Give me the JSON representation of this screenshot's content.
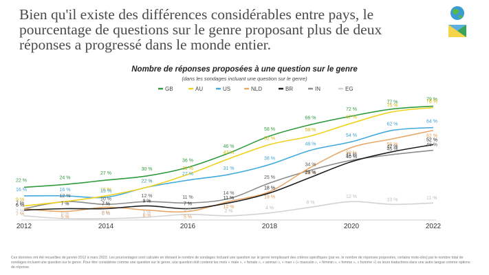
{
  "headline": "Bien qu'il existe des différences considérables entre pays, le pourcentage de questions sur le genre proposant plus de deux réponses a progressé dans le monde entier.",
  "chart_data": {
    "type": "line",
    "title": "Nombre de réponses proposées à une question sur le genre",
    "subtitle": "(dans les sondages incluant une question sur le genre)",
    "xlabel": "",
    "ylabel": "",
    "ylim": [
      0,
      85
    ],
    "x": [
      2012,
      2013,
      2014,
      2015,
      2016,
      2017,
      2018,
      2019,
      2020,
      2021,
      2022
    ],
    "x_tick_labels": [
      "2012",
      "2014",
      "2016",
      "2018",
      "2020",
      "2022"
    ],
    "grid": false,
    "legend_position": "top",
    "series": [
      {
        "name": "GB",
        "color": "#2e9a3c",
        "values": [
          22,
          24,
          27,
          30,
          36,
          46,
          58,
          66,
          72,
          77,
          79
        ]
      },
      {
        "name": "AU",
        "color": "#f0d21c",
        "values": [
          9,
          12,
          16,
          22,
          31,
          42,
          52,
          58,
          67,
          75,
          78
        ]
      },
      {
        "name": "US",
        "color": "#41a9dc",
        "values": [
          16,
          16,
          15,
          22,
          27,
          31,
          38,
          48,
          54,
          62,
          64
        ]
      },
      {
        "name": "NLD",
        "color": "#e8a868",
        "values": [
          7,
          5,
          8,
          6,
          5,
          12,
          19,
          36,
          50,
          56,
          62
        ]
      },
      {
        "name": "BR",
        "color": "#1e1e1e",
        "values": [
          6,
          7,
          7,
          9,
          7,
          11,
          18,
          29,
          40,
          47,
          52
        ]
      },
      {
        "name": "IN",
        "color": "#8c8c8c",
        "values": [
          7,
          12,
          10,
          12,
          11,
          14,
          25,
          34,
          41,
          45,
          48
        ]
      },
      {
        "name": "EG",
        "color": "#d2d2d2",
        "values": [
          2,
          0,
          0,
          1,
          3,
          2,
          4,
          8,
          12,
          10,
          11
        ]
      }
    ],
    "labels": [
      {
        "series": "GB",
        "x": 2012,
        "text": "22 %"
      },
      {
        "series": "GB",
        "x": 2013,
        "text": "24 %"
      },
      {
        "series": "GB",
        "x": 2014,
        "text": "27 %"
      },
      {
        "series": "GB",
        "x": 2015,
        "text": "30 %"
      },
      {
        "series": "GB",
        "x": 2016,
        "text": "36 %"
      },
      {
        "series": "GB",
        "x": 2017,
        "text": "46 %"
      },
      {
        "series": "GB",
        "x": 2018,
        "text": "58 %"
      },
      {
        "series": "GB",
        "x": 2019,
        "text": "66 %"
      },
      {
        "series": "GB",
        "x": 2020,
        "text": "72 %"
      },
      {
        "series": "GB",
        "x": 2021,
        "text": "77 %"
      },
      {
        "series": "GB",
        "x": 2022,
        "text": "79 %"
      },
      {
        "series": "AU",
        "x": 2012,
        "text": "9 %"
      },
      {
        "series": "AU",
        "x": 2014,
        "text": "16 %"
      },
      {
        "series": "AU",
        "x": 2015,
        "text": "22 %"
      },
      {
        "series": "AU",
        "x": 2016,
        "text": "31 %"
      },
      {
        "series": "AU",
        "x": 2017,
        "text": "42 %"
      },
      {
        "series": "AU",
        "x": 2018,
        "text": "52 %"
      },
      {
        "series": "AU",
        "x": 2019,
        "text": "58 %"
      },
      {
        "series": "AU",
        "x": 2020,
        "text": "67 %"
      },
      {
        "series": "AU",
        "x": 2021,
        "text": "75 %"
      },
      {
        "series": "AU",
        "x": 2022,
        "text": "78 %"
      },
      {
        "series": "US",
        "x": 2012,
        "text": "16 %"
      },
      {
        "series": "US",
        "x": 2013,
        "text": "16 %"
      },
      {
        "series": "US",
        "x": 2014,
        "text": "15 %"
      },
      {
        "series": "US",
        "x": 2015,
        "text": "22 %"
      },
      {
        "series": "US",
        "x": 2016,
        "text": "27 %"
      },
      {
        "series": "US",
        "x": 2017,
        "text": "31 %"
      },
      {
        "series": "US",
        "x": 2018,
        "text": "38 %"
      },
      {
        "series": "US",
        "x": 2019,
        "text": "48 %"
      },
      {
        "series": "US",
        "x": 2020,
        "text": "54 %"
      },
      {
        "series": "US",
        "x": 2021,
        "text": "62 %"
      },
      {
        "series": "US",
        "x": 2022,
        "text": "64 %"
      },
      {
        "series": "NLD",
        "x": 2012,
        "text": "7 %"
      },
      {
        "series": "NLD",
        "x": 2013,
        "text": "5 %"
      },
      {
        "series": "NLD",
        "x": 2014,
        "text": "8 %"
      },
      {
        "series": "NLD",
        "x": 2015,
        "text": "6 %"
      },
      {
        "series": "NLD",
        "x": 2016,
        "text": "5 %"
      },
      {
        "series": "NLD",
        "x": 2017,
        "text": "12 %"
      },
      {
        "series": "NLD",
        "x": 2018,
        "text": "19 %"
      },
      {
        "series": "NLD",
        "x": 2019,
        "text": "36 %"
      },
      {
        "series": "NLD",
        "x": 2020,
        "text": "50 %"
      },
      {
        "series": "NLD",
        "x": 2021,
        "text": "56 %"
      },
      {
        "series": "NLD",
        "x": 2022,
        "text": "62 %"
      },
      {
        "series": "BR",
        "x": 2012,
        "text": "6 %"
      },
      {
        "series": "BR",
        "x": 2013,
        "text": "7 %"
      },
      {
        "series": "BR",
        "x": 2014,
        "text": "7 %"
      },
      {
        "series": "BR",
        "x": 2015,
        "text": "9 %"
      },
      {
        "series": "BR",
        "x": 2016,
        "text": "7 %"
      },
      {
        "series": "BR",
        "x": 2017,
        "text": "11 %"
      },
      {
        "series": "BR",
        "x": 2018,
        "text": "18 %"
      },
      {
        "series": "BR",
        "x": 2019,
        "text": "29 %"
      },
      {
        "series": "BR",
        "x": 2020,
        "text": "40 %"
      },
      {
        "series": "BR",
        "x": 2021,
        "text": "47 %"
      },
      {
        "series": "BR",
        "x": 2022,
        "text": "52 %"
      },
      {
        "series": "IN",
        "x": 2012,
        "text": "7 %"
      },
      {
        "series": "IN",
        "x": 2013,
        "text": "12 %"
      },
      {
        "series": "IN",
        "x": 2014,
        "text": "10 %"
      },
      {
        "series": "IN",
        "x": 2015,
        "text": "12 %"
      },
      {
        "series": "IN",
        "x": 2016,
        "text": "11 %"
      },
      {
        "series": "IN",
        "x": 2017,
        "text": "14 %"
      },
      {
        "series": "IN",
        "x": 2018,
        "text": "25 %"
      },
      {
        "series": "IN",
        "x": 2019,
        "text": "34 %"
      },
      {
        "series": "IN",
        "x": 2020,
        "text": "41 %"
      },
      {
        "series": "IN",
        "x": 2021,
        "text": "45 %"
      },
      {
        "series": "IN",
        "x": 2022,
        "text": "48 %"
      },
      {
        "series": "EG",
        "x": 2012,
        "text": "2 %"
      },
      {
        "series": "EG",
        "x": 2013,
        "text": "0 %"
      },
      {
        "series": "EG",
        "x": 2014,
        "text": "0 %"
      },
      {
        "series": "EG",
        "x": 2015,
        "text": "1 %"
      },
      {
        "series": "EG",
        "x": 2016,
        "text": "3 %"
      },
      {
        "series": "EG",
        "x": 2017,
        "text": "2 %"
      },
      {
        "series": "EG",
        "x": 2018,
        "text": "4 %"
      },
      {
        "series": "EG",
        "x": 2019,
        "text": "8 %"
      },
      {
        "series": "EG",
        "x": 2020,
        "text": "12 %"
      },
      {
        "series": "EG",
        "x": 2021,
        "text": "10 %"
      },
      {
        "series": "EG",
        "x": 2022,
        "text": "11 %"
      }
    ]
  },
  "footnote": "Ces données ont été recueillies de janvier 2012 à mars 2023. Les pourcentages sont calculés en divisant le nombre de sondages incluant une question sur le genre remplissant des critères spécifiques (par ex. le nombre de réponses proposées, certains mots-clés) par le nombre total de sondages incluant une question sur le genre. Pour être considérée comme une question sur le genre, une question doit contenir les mots « male », « female », « woman », « man » (« masculin », « féminin », « femme », « homme ») ou leurs traductions dans une autre langue comme options de réponse."
}
